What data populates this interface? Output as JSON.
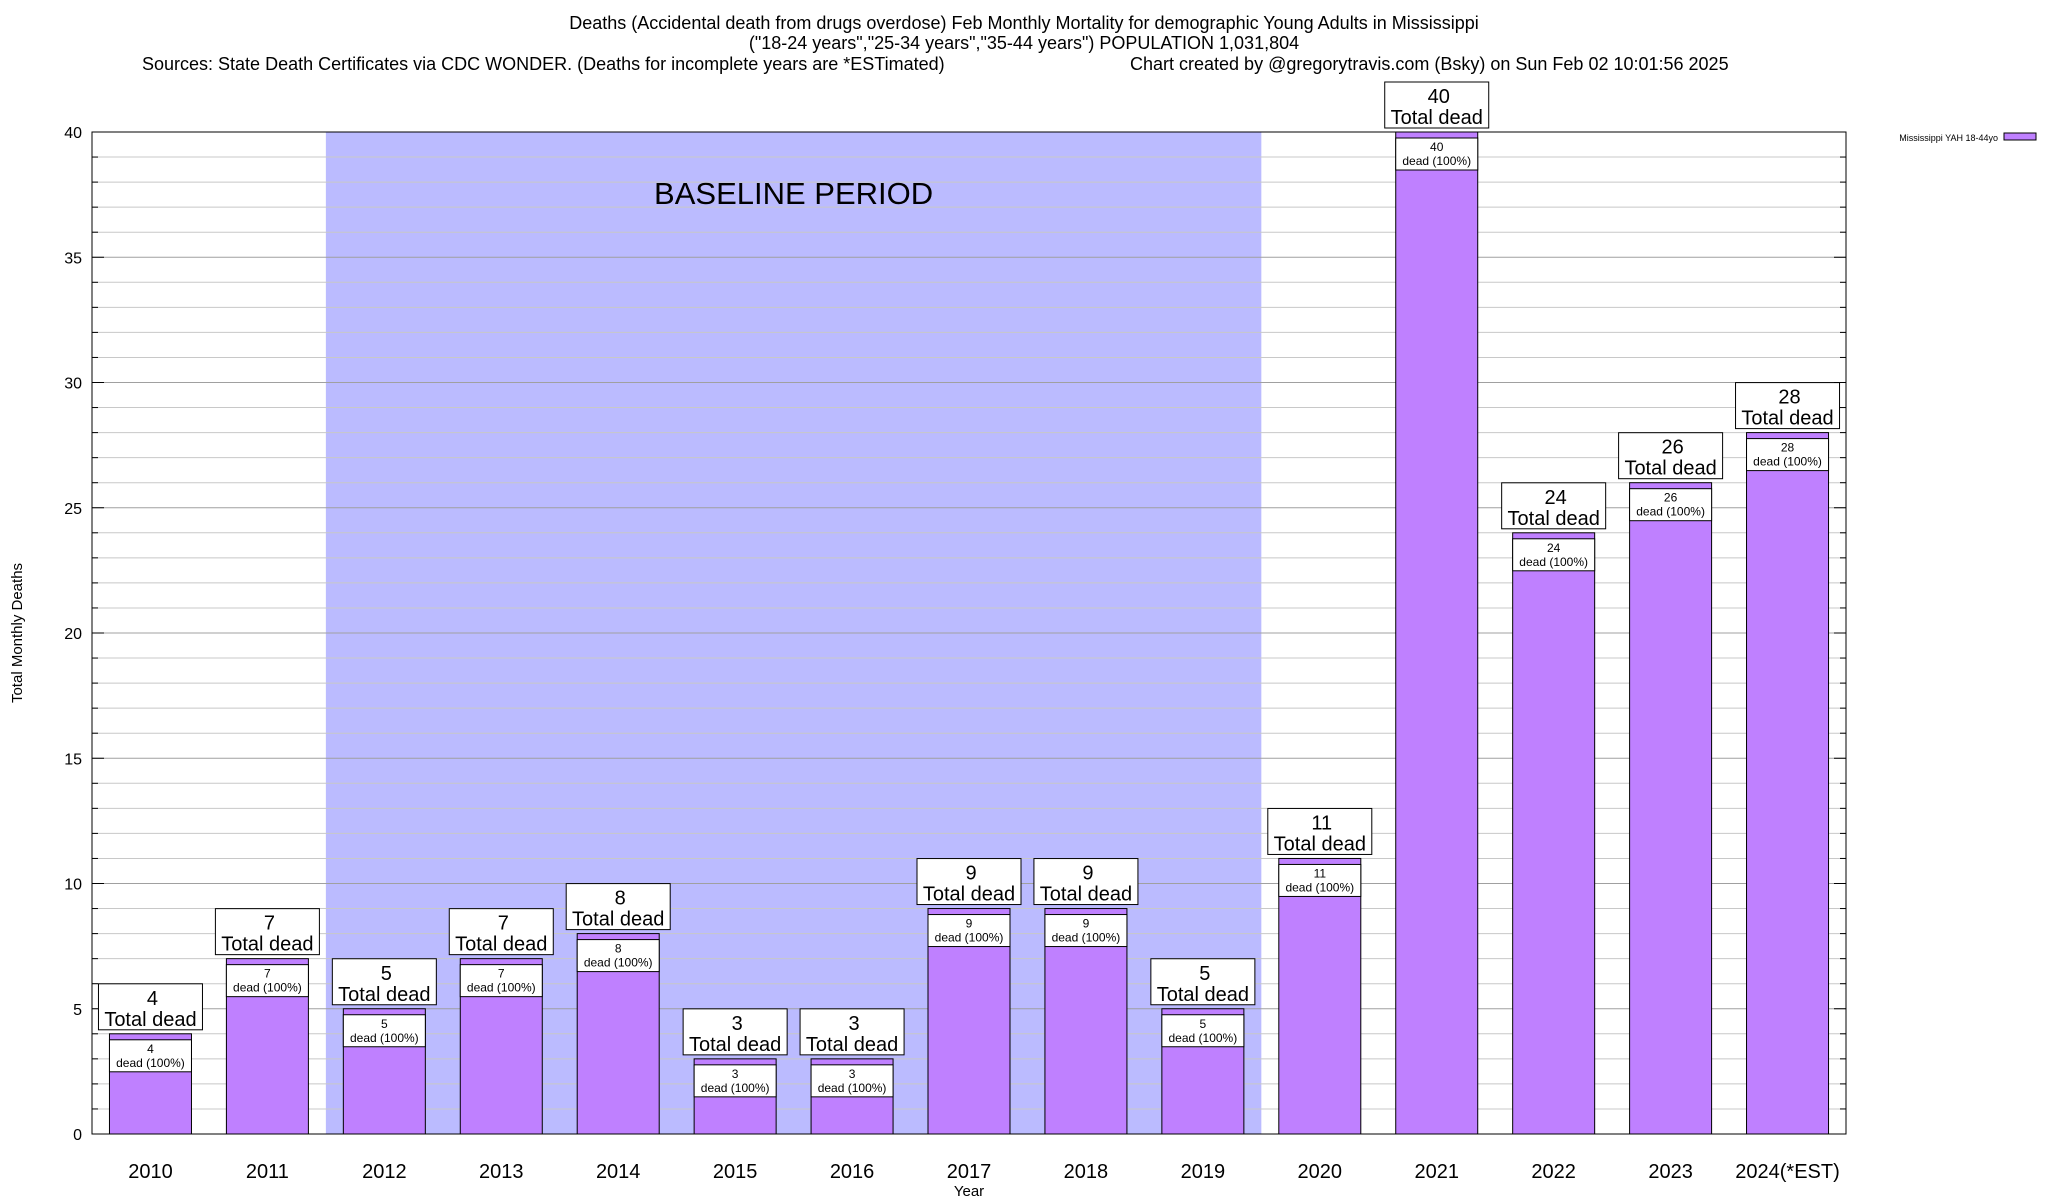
{
  "header": {
    "title": "Deaths (Accidental death from drugs overdose) Feb Monthly Mortality for demographic Young Adults in Mississippi",
    "subtitle": "(\"18-24 years\",\"25-34 years\",\"35-44 years\") POPULATION 1,031,804",
    "sources": "Sources: State Death Certificates via CDC WONDER. (Deaths for incomplete years are *ESTimated)",
    "credit": "Chart created by @gregorytravis.com (Bsky) on Sun Feb 02 10:01:56 2025"
  },
  "chart_data": {
    "type": "bar",
    "xlabel": "Year",
    "ylabel": "Total Monthly Deaths",
    "ylim": [
      0,
      40
    ],
    "y_ticks": [
      0,
      5,
      10,
      15,
      20,
      25,
      30,
      35,
      40
    ],
    "grid": true,
    "legend_position": "top-right",
    "categories": [
      "2010",
      "2011",
      "2012",
      "2013",
      "2014",
      "2015",
      "2016",
      "2017",
      "2018",
      "2019",
      "2020",
      "2021",
      "2022",
      "2023",
      "2024(*EST)"
    ],
    "series": [
      {
        "name": "Mississippi YAH 18-44yo",
        "values": [
          4,
          7,
          5,
          7,
          8,
          3,
          3,
          9,
          9,
          5,
          11,
          40,
          24,
          26,
          28
        ],
        "color": "#bf80ff"
      }
    ],
    "total_label": "Total dead",
    "inner_label": "dead (100%)",
    "baseline": {
      "label": "BASELINE PERIOD",
      "from": "2012",
      "to": "2019",
      "color": "#bbbbff"
    }
  }
}
